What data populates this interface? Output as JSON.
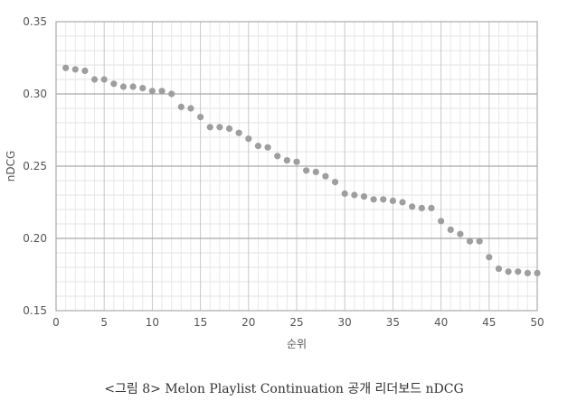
{
  "chart_data": {
    "type": "scatter",
    "xlabel": "순위",
    "ylabel": "nDCG",
    "xlim": [
      0,
      50
    ],
    "ylim": [
      0.15,
      0.35
    ],
    "x_ticks": [
      "0",
      "5",
      "10",
      "15",
      "20",
      "25",
      "30",
      "35",
      "40",
      "45",
      "50"
    ],
    "y_ticks": [
      "0.15",
      "0.20",
      "0.25",
      "0.30",
      "0.35"
    ],
    "grid": true,
    "marker_color": "#9e9e9e",
    "series": [
      {
        "x": [
          1,
          2,
          3,
          4,
          5,
          6,
          7,
          8,
          9,
          10,
          11,
          12,
          13,
          14,
          15,
          16,
          17,
          18,
          19,
          20,
          21,
          22,
          23,
          24,
          25,
          26,
          27,
          28,
          29,
          30,
          31,
          32,
          33,
          34,
          35,
          36,
          37,
          38,
          39,
          40,
          41,
          42,
          43,
          44,
          45,
          46,
          47,
          48,
          49,
          50
        ],
        "values": [
          0.318,
          0.317,
          0.316,
          0.31,
          0.31,
          0.307,
          0.305,
          0.305,
          0.304,
          0.302,
          0.302,
          0.3,
          0.291,
          0.29,
          0.284,
          0.277,
          0.277,
          0.276,
          0.273,
          0.269,
          0.264,
          0.263,
          0.257,
          0.254,
          0.253,
          0.247,
          0.246,
          0.243,
          0.239,
          0.231,
          0.23,
          0.229,
          0.227,
          0.227,
          0.226,
          0.225,
          0.222,
          0.221,
          0.221,
          0.212,
          0.206,
          0.203,
          0.198,
          0.198,
          0.187,
          0.179,
          0.177,
          0.177,
          0.176,
          0.176
        ]
      }
    ]
  },
  "caption": "<그림 8> Melon Playlist Continuation 공개 리더보드 nDCG"
}
